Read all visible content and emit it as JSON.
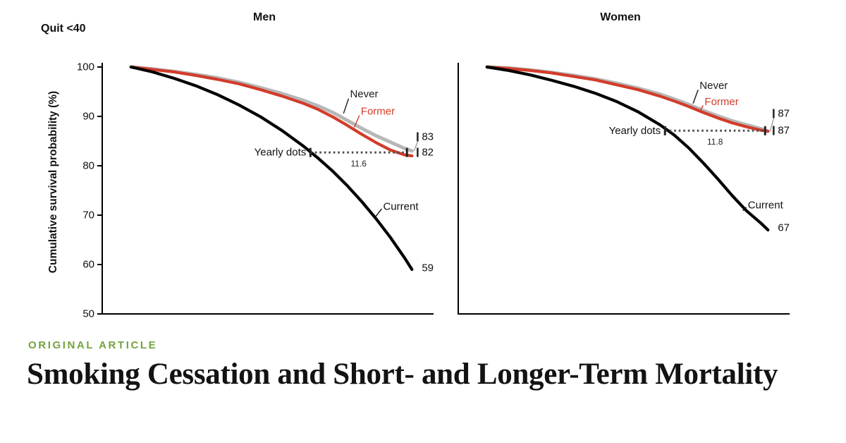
{
  "figure": {
    "quit_label": "Quit <40",
    "ylabel": "Cumulative survival probability (%)"
  },
  "article": {
    "kicker": "ORIGINAL ARTICLE",
    "kicker_color": "#74a23d",
    "title": "Smoking Cessation and Short- and Longer-Term Mortality"
  },
  "chart_data": [
    {
      "type": "line",
      "title": "Men",
      "xlabel": "",
      "ylabel": "Cumulative survival probability (%)",
      "xlim": [
        36,
        82
      ],
      "ylim": [
        50,
        100
      ],
      "yticks": [
        100,
        90,
        80,
        70,
        60,
        50
      ],
      "show_ytick_labels": true,
      "grid": false,
      "series": [
        {
          "name": "Never",
          "color": "#b7b7b7",
          "width": 5,
          "x": [
            40,
            43,
            46,
            49,
            52,
            55,
            58,
            61,
            64,
            66,
            68,
            70,
            72,
            74,
            76,
            78,
            79
          ],
          "y": [
            100,
            99.6,
            99.1,
            98.5,
            97.8,
            96.9,
            95.8,
            94.6,
            93.2,
            92.1,
            90.8,
            89.2,
            87.6,
            86.1,
            84.8,
            83.5,
            83
          ],
          "end_label": "83",
          "end_label_dy": -20,
          "end_tick": true,
          "label": {
            "text": "Never",
            "x": 70.4,
            "y": 94.5,
            "color": "#1a1a1a"
          },
          "leader": {
            "x1": 69.5,
            "y1": 90.6,
            "x2": 70.2,
            "y2": 93.6
          }
        },
        {
          "name": "Former",
          "color": "#d23c2a",
          "width": 4.2,
          "x": [
            40,
            43,
            46,
            49,
            52,
            55,
            58,
            61,
            64,
            66,
            68,
            70,
            72,
            74,
            76,
            78,
            79
          ],
          "y": [
            100,
            99.5,
            99.0,
            98.3,
            97.5,
            96.6,
            95.4,
            94.1,
            92.6,
            91.4,
            89.9,
            88.2,
            86.4,
            84.7,
            83.2,
            82.2,
            82
          ],
          "end_label": "82",
          "end_label_dy": -5,
          "end_tick": true,
          "label": {
            "text": "Former",
            "x": 71.9,
            "y": 91.0,
            "color": "#d23c2a"
          },
          "leader": {
            "x1": 71.0,
            "y1": 87.8,
            "x2": 71.7,
            "y2": 90.2
          }
        },
        {
          "name": "Current",
          "color": "#000000",
          "width": 4.2,
          "x": [
            40,
            43,
            46,
            49,
            52,
            55,
            58,
            61,
            64,
            66,
            68,
            70,
            72,
            74,
            76,
            78,
            79
          ],
          "y": [
            100,
            99.0,
            97.7,
            96.2,
            94.4,
            92.3,
            89.9,
            87.1,
            83.9,
            81.5,
            78.9,
            76.0,
            72.8,
            69.3,
            65.5,
            61.3,
            59
          ],
          "end_label": "59",
          "end_label_dy": -2,
          "end_tick": false,
          "label": {
            "text": "Current",
            "x": 75.0,
            "y": 71.7,
            "color": "#111111"
          },
          "leader": {
            "x1": 74.0,
            "y1": 69.8,
            "x2": 74.8,
            "y2": 71.3
          }
        }
      ],
      "gap_annotation": {
        "label": "Yearly dots",
        "value": "11.6",
        "y": 82.7,
        "x_start": 64.9,
        "x_end": 78.3
      }
    },
    {
      "type": "line",
      "title": "Women",
      "xlabel": "",
      "ylabel": "Cumulative survival probability (%)",
      "xlim": [
        36,
        82
      ],
      "ylim": [
        50,
        100
      ],
      "yticks": [
        100,
        90,
        80,
        70,
        60,
        50
      ],
      "show_ytick_labels": false,
      "grid": false,
      "series": [
        {
          "name": "Never",
          "color": "#b7b7b7",
          "width": 5,
          "x": [
            40,
            43,
            46,
            49,
            52,
            55,
            58,
            61,
            64,
            66,
            68,
            70,
            72,
            74,
            76,
            78,
            79
          ],
          "y": [
            100,
            99.8,
            99.4,
            98.9,
            98.3,
            97.6,
            96.7,
            95.7,
            94.5,
            93.5,
            92.4,
            91.2,
            90.1,
            89.1,
            88.3,
            87.5,
            87
          ],
          "end_label": "87",
          "end_label_dy": -25,
          "end_tick": true,
          "label": {
            "text": "Never",
            "x": 69.5,
            "y": 96.2,
            "color": "#1a1a1a"
          },
          "leader": {
            "x1": 68.6,
            "y1": 92.6,
            "x2": 69.3,
            "y2": 95.4
          }
        },
        {
          "name": "Former",
          "color": "#d23c2a",
          "width": 4.2,
          "x": [
            40,
            43,
            46,
            49,
            52,
            55,
            58,
            61,
            64,
            66,
            68,
            70,
            72,
            74,
            76,
            78,
            79
          ],
          "y": [
            100,
            99.7,
            99.3,
            98.8,
            98.1,
            97.4,
            96.4,
            95.4,
            94.1,
            93.1,
            92.0,
            90.8,
            89.7,
            88.7,
            87.9,
            87.2,
            87
          ],
          "end_label": "87",
          "end_label_dy": -1,
          "end_tick": true,
          "label": {
            "text": "Former",
            "x": 70.2,
            "y": 92.9,
            "color": "#d23c2a"
          },
          "leader": {
            "x1": 69.6,
            "y1": 91.2,
            "x2": 70.0,
            "y2": 92.2
          }
        },
        {
          "name": "Current",
          "color": "#000000",
          "width": 4.2,
          "x": [
            40,
            43,
            46,
            49,
            52,
            55,
            58,
            61,
            64,
            66,
            68,
            70,
            72,
            74,
            76,
            78,
            79
          ],
          "y": [
            100,
            99.3,
            98.4,
            97.3,
            96.1,
            94.7,
            93.0,
            90.9,
            88.3,
            86.2,
            83.6,
            80.6,
            77.4,
            74.0,
            70.9,
            68.4,
            67
          ],
          "end_label": "67",
          "end_label_dy": -3,
          "end_tick": false,
          "label": {
            "text": "Current",
            "x": 76.2,
            "y": 72.0,
            "color": "#111111"
          },
          "leader": {
            "x1": 75.5,
            "y1": 70.9,
            "x2": 76.0,
            "y2": 71.6
          }
        }
      ],
      "gap_annotation": {
        "label": "Yearly dots",
        "value": "11.8",
        "y": 87.1,
        "x_start": 64.7,
        "x_end": 78.6
      }
    }
  ]
}
